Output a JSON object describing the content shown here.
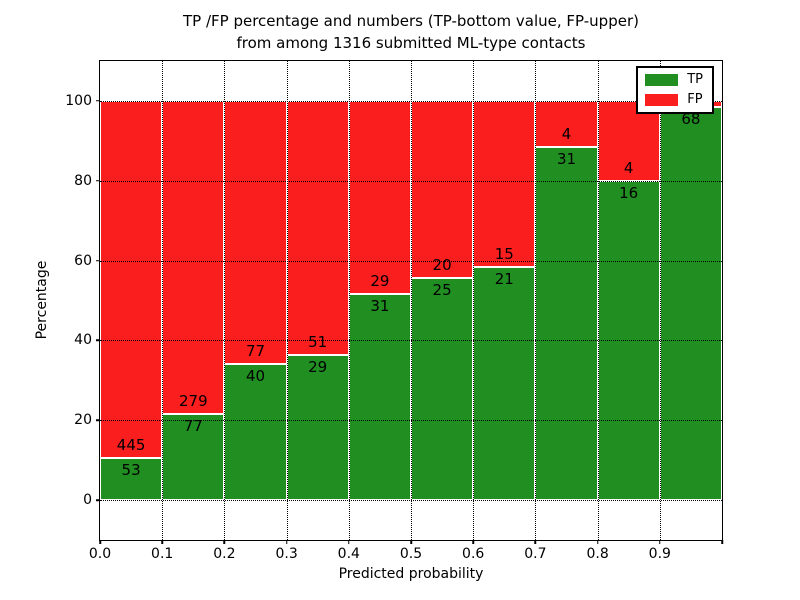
{
  "chart_data": {
    "type": "bar",
    "subtype": "stacked_percentage",
    "title_lines": [
      "TP /FP percentage and numbers (TP-bottom value, FP-upper)",
      "from among 1316 submitted ML-type contacts"
    ],
    "title": "TP /FP percentage and numbers (TP-bottom value, FP-upper) from among 1316 submitted ML-type contacts",
    "xlabel": "Predicted probability",
    "ylabel": "Percentage",
    "total_contacts": 1316,
    "categories": [
      "0.0-0.1",
      "0.1-0.2",
      "0.2-0.3",
      "0.3-0.4",
      "0.4-0.5",
      "0.5-0.6",
      "0.6-0.7",
      "0.7-0.8",
      "0.8-0.9",
      "0.9-1.0"
    ],
    "series": [
      {
        "name": "TP",
        "color": "#218e21",
        "values": [
          53,
          77,
          40,
          29,
          31,
          25,
          21,
          31,
          16,
          68
        ]
      },
      {
        "name": "FP",
        "color": "#fb1e1e",
        "values": [
          445,
          279,
          77,
          51,
          29,
          20,
          15,
          4,
          4,
          1
        ]
      }
    ],
    "fp_label_visible": [
      true,
      true,
      true,
      true,
      true,
      true,
      true,
      true,
      true,
      false
    ],
    "x_tick_labels": [
      "0.0",
      "0.1",
      "0.2",
      "0.3",
      "0.4",
      "0.5",
      "0.6",
      "0.7",
      "0.8",
      "0.9"
    ],
    "y_ticks": [
      0,
      20,
      40,
      60,
      80,
      100
    ],
    "xlim": [
      0.0,
      1.0
    ],
    "ylim": [
      -10,
      110
    ],
    "bin_width": 0.1,
    "grid": {
      "style": "dotted",
      "color": "#000000",
      "on_top": true
    },
    "legend": {
      "position": "upper right",
      "entries": [
        "TP",
        "FP"
      ]
    },
    "axis_color": "#000000",
    "background_color": "#ffffff"
  }
}
